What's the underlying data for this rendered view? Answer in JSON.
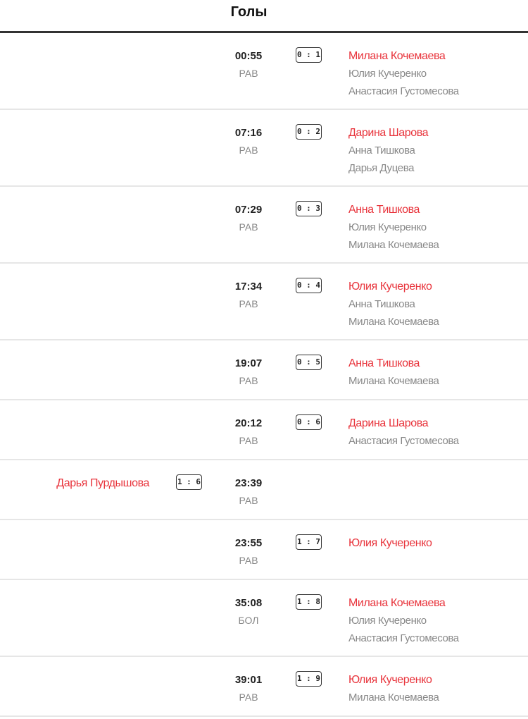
{
  "title": "Голы",
  "colors": {
    "scorer": "#e8333b",
    "assist": "#888888",
    "divider": "#333333"
  },
  "goals": [
    {
      "time": "00:55",
      "situation": "РАВ",
      "score": "0 : 1",
      "side": "away",
      "scorer": "Милана Кочемаева",
      "assists": [
        "Юлия Кучеренко",
        "Анастасия Густомесова"
      ]
    },
    {
      "time": "07:16",
      "situation": "РАВ",
      "score": "0 : 2",
      "side": "away",
      "scorer": "Дарина Шарова",
      "assists": [
        "Анна Тишкова",
        "Дарья Дуцева"
      ]
    },
    {
      "time": "07:29",
      "situation": "РАВ",
      "score": "0 : 3",
      "side": "away",
      "scorer": "Анна Тишкова",
      "assists": [
        "Юлия Кучеренко",
        "Милана Кочемаева"
      ]
    },
    {
      "time": "17:34",
      "situation": "РАВ",
      "score": "0 : 4",
      "side": "away",
      "scorer": "Юлия Кучеренко",
      "assists": [
        "Анна Тишкова",
        "Милана Кочемаева"
      ]
    },
    {
      "time": "19:07",
      "situation": "РАВ",
      "score": "0 : 5",
      "side": "away",
      "scorer": "Анна Тишкова",
      "assists": [
        "Милана Кочемаева"
      ]
    },
    {
      "time": "20:12",
      "situation": "РАВ",
      "score": "0 : 6",
      "side": "away",
      "scorer": "Дарина Шарова",
      "assists": [
        "Анастасия Густомесова"
      ]
    },
    {
      "time": "23:39",
      "situation": "РАВ",
      "score": "1 : 6",
      "side": "home",
      "scorer": "Дарья Пурдышова",
      "assists": []
    },
    {
      "time": "23:55",
      "situation": "РАВ",
      "score": "1 : 7",
      "side": "away",
      "scorer": "Юлия Кучеренко",
      "assists": []
    },
    {
      "time": "35:08",
      "situation": "БОЛ",
      "score": "1 : 8",
      "side": "away",
      "scorer": "Милана Кочемаева",
      "assists": [
        "Юлия Кучеренко",
        "Анастасия Густомесова"
      ]
    },
    {
      "time": "39:01",
      "situation": "РАВ",
      "score": "1 : 9",
      "side": "away",
      "scorer": "Юлия Кучеренко",
      "assists": [
        "Милана Кочемаева"
      ]
    }
  ]
}
